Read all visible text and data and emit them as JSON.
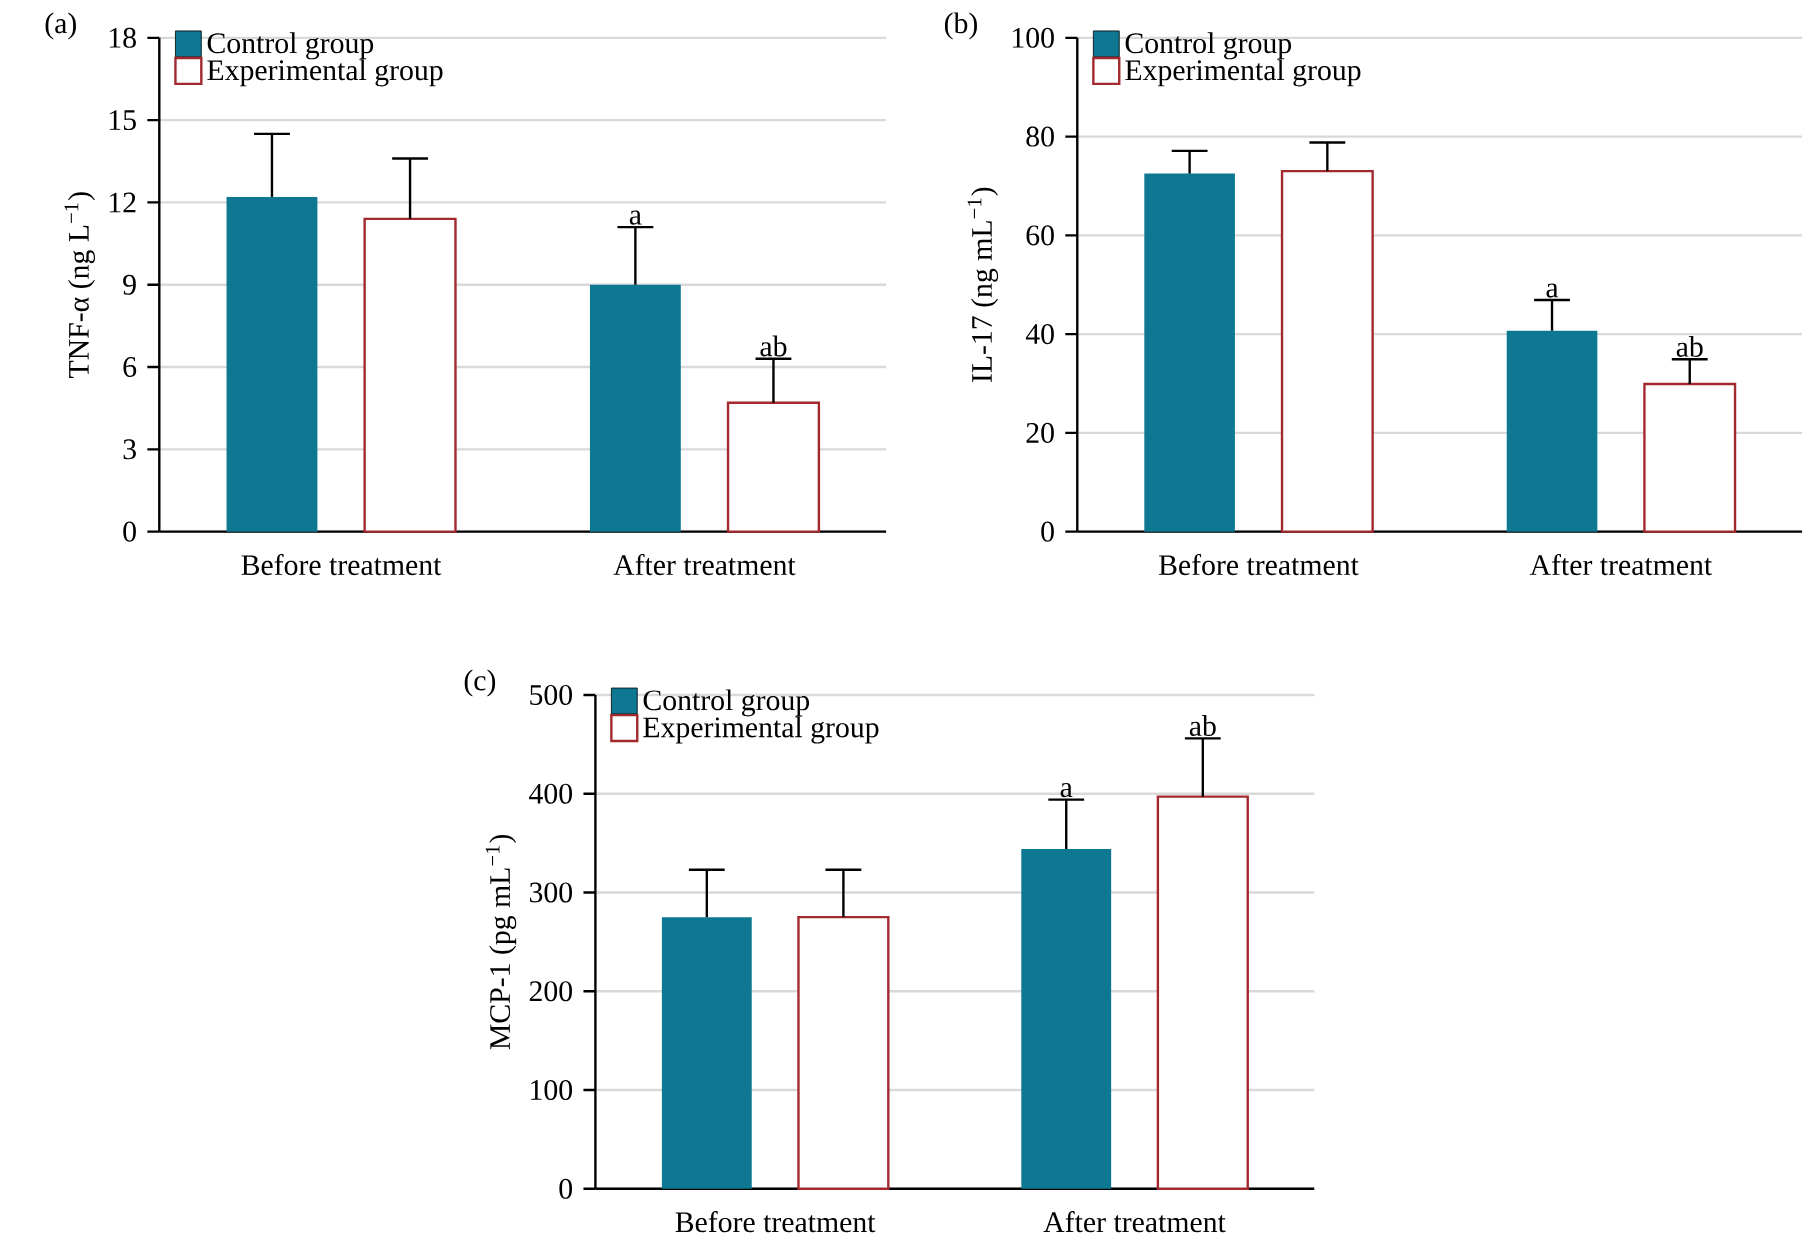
{
  "chart_data": [
    {
      "type": "bar",
      "title": "(a)",
      "categories": [
        "Before treatment",
        "After treatment"
      ],
      "ylabel": "TNF-α (ng L$^{−1}$)",
      "ylim": [
        0,
        18
      ],
      "yticks": [
        0,
        3,
        6,
        9,
        12,
        15,
        18
      ],
      "grid": "y",
      "legend": "top left",
      "series": [
        {
          "name": "Control group",
          "color": "#0e7893",
          "values": [
            12.2,
            9.0
          ],
          "errors": [
            [
              12.2,
              14.5
            ],
            [
              9.0,
              11.1
            ]
          ],
          "value_labels": [
            null,
            "a"
          ]
        },
        {
          "name": "Experimental group",
          "color": "#a3292e",
          "values": [
            11.4,
            4.7
          ],
          "errors": [
            [
              11.4,
              13.6
            ],
            [
              4.7,
              6.3
            ]
          ],
          "value_labels": [
            null,
            "ab"
          ]
        }
      ]
    },
    {
      "type": "bar",
      "title": "(b)",
      "categories": [
        "Before treatment",
        "After treatment"
      ],
      "ylabel": "IL-17 (ng mL$^{−1}$)",
      "ylim": [
        0,
        100
      ],
      "yticks": [
        0,
        20,
        40,
        60,
        80,
        100
      ],
      "grid": "y",
      "legend": "top left",
      "series": [
        {
          "name": "Control group",
          "color": "#0e7893",
          "values": [
            72.5,
            40.7
          ],
          "errors": [
            [
              72.5,
              77.1
            ],
            [
              40.7,
              46.9
            ]
          ],
          "value_labels": [
            null,
            "a"
          ]
        },
        {
          "name": "Experimental group",
          "color": "#a3292e",
          "values": [
            73.0,
            29.9
          ],
          "errors": [
            [
              73.0,
              78.8
            ],
            [
              29.9,
              34.9
            ]
          ],
          "value_labels": [
            null,
            "ab"
          ]
        }
      ]
    },
    {
      "type": "bar",
      "title": "(c)",
      "categories": [
        "Before treatment",
        "After treatment"
      ],
      "ylabel": "MCP-1 (pg mL$^{−1}$)",
      "ylim": [
        0,
        500
      ],
      "yticks": [
        0,
        100,
        200,
        300,
        400,
        500
      ],
      "grid": "y",
      "legend": "top left",
      "series": [
        {
          "name": "Control group",
          "color": "#0e7893",
          "values": [
            275,
            344
          ],
          "errors": [
            [
              275,
              323
            ],
            [
              344,
              394
            ]
          ],
          "value_labels": [
            null,
            "a"
          ]
        },
        {
          "name": "Experimental group",
          "color": "#a3292e",
          "values": [
            275,
            397
          ],
          "errors": [
            [
              275,
              323
            ],
            [
              397,
              456
            ]
          ],
          "value_labels": [
            null,
            "ab"
          ]
        }
      ]
    }
  ]
}
